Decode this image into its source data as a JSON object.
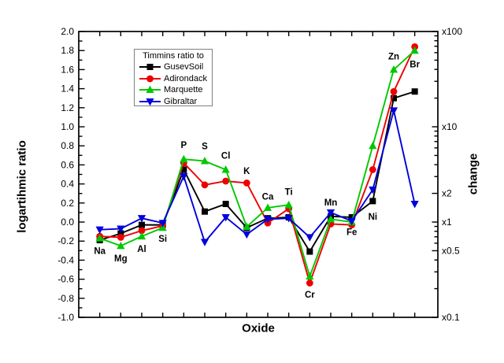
{
  "figure": {
    "background": "#ffffff",
    "axis_color": "#000000",
    "legend_border_color": "#808080"
  },
  "chart_data": {
    "type": "line",
    "title": "",
    "xlabel": "Oxide",
    "ylabel_left": "logartihmic ratio",
    "ylabel_right": "change",
    "ylim": [
      -1.0,
      2.0
    ],
    "y_major_step": 0.2,
    "y_minor_step": 0.1,
    "grid": false,
    "legend_position": "top-left-inside",
    "legend": {
      "title": "Timmins ratio to"
    },
    "categories": [
      "Na",
      "Mg",
      "Al",
      "Si",
      "P",
      "S",
      "Cl",
      "K",
      "Ca",
      "Ti",
      "Cr",
      "Mn",
      "Fe",
      "Ni",
      "Zn",
      "Br"
    ],
    "category_label_v": [
      -0.31,
      -0.39,
      -0.29,
      -0.18,
      0.8,
      0.79,
      0.69,
      0.53,
      0.26,
      0.31,
      -0.77,
      0.2,
      -0.11,
      0.05,
      1.73,
      1.65
    ],
    "series": [
      {
        "name": "GusevSoil",
        "color": "#000000",
        "marker": "square",
        "values": [
          -0.19,
          -0.12,
          -0.03,
          -0.03,
          0.55,
          0.11,
          0.19,
          -0.06,
          0.04,
          0.05,
          -0.31,
          0.06,
          0.05,
          0.22,
          1.3,
          1.37
        ]
      },
      {
        "name": "Adirondack",
        "color": "#ee0000",
        "marker": "circle",
        "values": [
          -0.15,
          -0.16,
          -0.09,
          -0.04,
          0.62,
          0.39,
          0.43,
          0.41,
          -0.01,
          0.14,
          -0.64,
          -0.02,
          -0.03,
          0.55,
          1.37,
          1.84
        ]
      },
      {
        "name": "Marquette",
        "color": "#00c800",
        "marker": "triangle-up",
        "values": [
          -0.17,
          -0.25,
          -0.15,
          -0.06,
          0.66,
          0.64,
          0.55,
          -0.05,
          0.15,
          0.18,
          -0.57,
          0.03,
          0.0,
          0.8,
          1.6,
          1.8
        ]
      },
      {
        "name": "Gibraltar",
        "color": "#0000dd",
        "marker": "triangle-down",
        "values": [
          -0.08,
          -0.07,
          0.04,
          -0.01,
          0.48,
          -0.21,
          0.05,
          -0.13,
          0.03,
          0.04,
          -0.16,
          0.1,
          0.01,
          0.34,
          1.17,
          0.19
        ]
      }
    ],
    "right_axis_labels": [
      {
        "label": "x100",
        "v": 2.0
      },
      {
        "label": "x10",
        "v": 1.0
      },
      {
        "label": "x2",
        "v": 0.30103
      },
      {
        "label": "x1",
        "v": 0.0
      },
      {
        "label": "x0.5",
        "v": -0.30103
      },
      {
        "label": "x0.1",
        "v": -1.0
      }
    ]
  }
}
